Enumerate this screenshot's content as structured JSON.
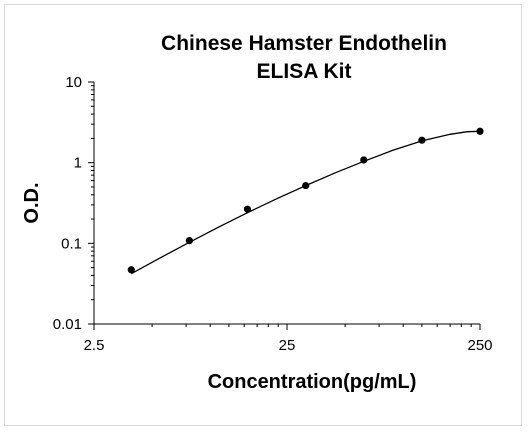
{
  "chart_data": {
    "type": "scatter",
    "title_lines": [
      "Chinese Hamster Endothelin",
      "ELISA Kit"
    ],
    "xlabel": "Concentration(pg/mL)",
    "ylabel": "O.D.",
    "x_scale": "log",
    "y_scale": "log",
    "xlim": [
      2.5,
      250
    ],
    "ylim": [
      0.01,
      10
    ],
    "x_ticks": [
      {
        "value": 2.5,
        "label": "2.5"
      },
      {
        "value": 25,
        "label": "25"
      },
      {
        "value": 250,
        "label": "250"
      }
    ],
    "y_ticks": [
      {
        "value": 0.01,
        "label": "0.01"
      },
      {
        "value": 0.1,
        "label": "0.1"
      },
      {
        "value": 1,
        "label": "1"
      },
      {
        "value": 10,
        "label": "10"
      }
    ],
    "grid": false,
    "legend": false,
    "series": [
      {
        "points": [
          {
            "x": 3.9,
            "y": 0.047
          },
          {
            "x": 7.8,
            "y": 0.108
          },
          {
            "x": 15.6,
            "y": 0.265
          },
          {
            "x": 31.25,
            "y": 0.52
          },
          {
            "x": 62.5,
            "y": 1.08
          },
          {
            "x": 125,
            "y": 1.9
          },
          {
            "x": 250,
            "y": 2.45
          }
        ],
        "fit_curve": [
          {
            "x": 3.9,
            "y": 0.042
          },
          {
            "x": 5.5,
            "y": 0.066
          },
          {
            "x": 7.8,
            "y": 0.103
          },
          {
            "x": 11,
            "y": 0.158
          },
          {
            "x": 15.6,
            "y": 0.24
          },
          {
            "x": 22,
            "y": 0.355
          },
          {
            "x": 31.25,
            "y": 0.52
          },
          {
            "x": 44,
            "y": 0.74
          },
          {
            "x": 62.5,
            "y": 1.04
          },
          {
            "x": 88,
            "y": 1.42
          },
          {
            "x": 125,
            "y": 1.86
          },
          {
            "x": 175,
            "y": 2.25
          },
          {
            "x": 215,
            "y": 2.42
          },
          {
            "x": 250,
            "y": 2.45
          }
        ],
        "marker_color": "#000000",
        "line_color": "#000000"
      }
    ]
  }
}
